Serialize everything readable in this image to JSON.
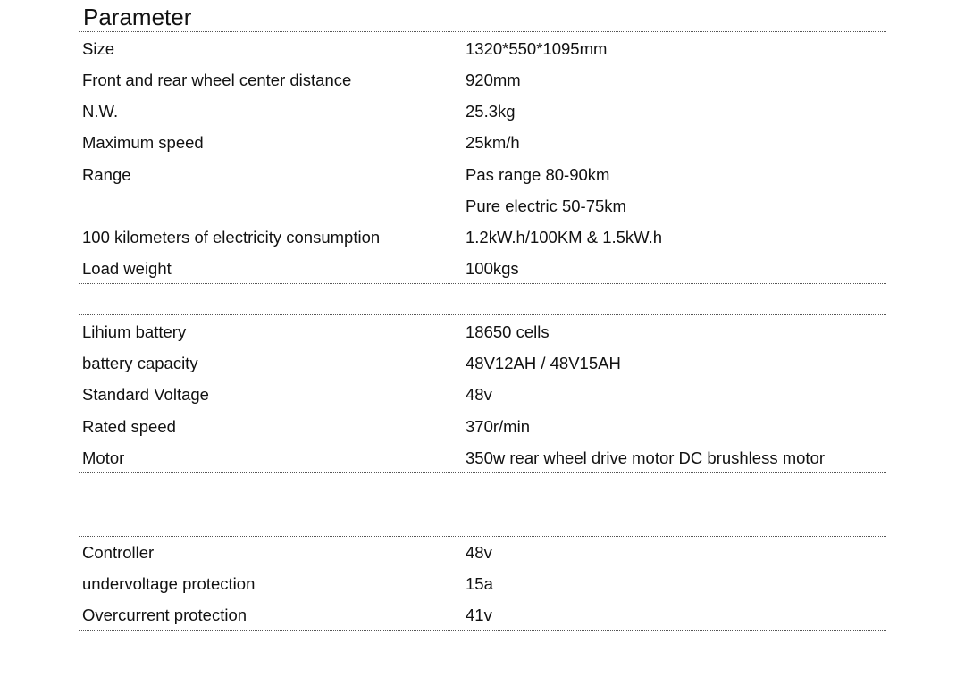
{
  "title": "Parameter",
  "sections": [
    {
      "rows": [
        {
          "label": "Size",
          "value": "1320*550*1095mm"
        },
        {
          "label": "Front and rear wheel center distance",
          "value": "920mm"
        },
        {
          "label": "N.W.",
          "value": "25.3kg"
        },
        {
          "label": "Maximum speed",
          "value": "25km/h"
        },
        {
          "label": "Range",
          "value": "Pas range 80-90km"
        },
        {
          "label": "",
          "value": "Pure electric 50-75km"
        },
        {
          "label": "100 kilometers of electricity consumption",
          "value": "1.2kW.h/100KM & 1.5kW.h"
        },
        {
          "label": "Load weight",
          "value": "100kgs"
        }
      ]
    },
    {
      "rows": [
        {
          "label": "Lihium battery",
          "value": "18650 cells"
        },
        {
          "label": "battery capacity",
          "value": "48V12AH / 48V15AH"
        },
        {
          "label": "Standard Voltage",
          "value": "48v"
        },
        {
          "label": "Rated speed",
          "value": "370r/min"
        },
        {
          "label": "Motor",
          "value": "350w rear wheel drive motor DC brushless motor"
        }
      ]
    },
    {
      "rows": [
        {
          "label": "Controller",
          "value": "48v"
        },
        {
          "label": "undervoltage protection",
          "value": "15a"
        },
        {
          "label": "Overcurrent protection",
          "value": "41v"
        }
      ]
    }
  ]
}
